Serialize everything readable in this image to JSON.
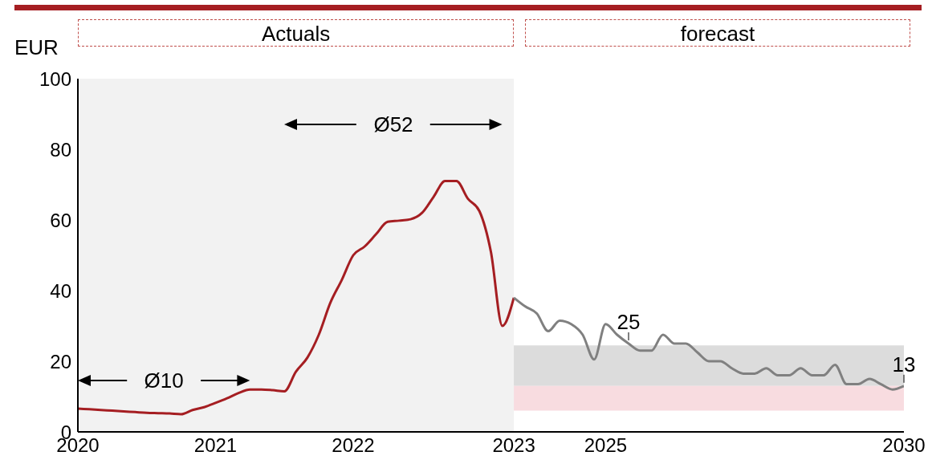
{
  "chart_data": {
    "type": "line",
    "ylabel": "EUR",
    "categories": [
      "2020",
      null,
      null,
      null,
      null,
      null,
      null,
      null,
      null,
      null,
      null,
      null,
      "2021",
      null,
      null,
      null,
      null,
      null,
      null,
      null,
      null,
      null,
      null,
      null,
      "2022",
      null,
      null,
      null,
      null,
      null,
      null,
      null,
      null,
      null,
      null,
      null,
      null,
      null,
      "2023",
      null,
      null,
      null,
      null,
      null,
      null,
      null,
      "2025",
      null,
      null,
      null,
      null,
      null,
      null,
      null,
      null,
      null,
      null,
      null,
      null,
      null,
      null,
      null,
      null,
      null,
      null,
      null,
      null,
      null,
      null,
      null,
      null,
      null,
      "2030"
    ],
    "series": [
      {
        "color": "#a51e22",
        "values": [
          6.6,
          6.4,
          6.2,
          6,
          5.8,
          5.6,
          5.4,
          5.3,
          5.2,
          5,
          6.2,
          7,
          8.2,
          9.5,
          11,
          12,
          12,
          11.8,
          11.5,
          17,
          21,
          27.5,
          36.5,
          43,
          50,
          52.5,
          56,
          59.5,
          59.8,
          60.2,
          62,
          66.5,
          71,
          71,
          66,
          62.5,
          51,
          30,
          38,
          null,
          null,
          null,
          null,
          null,
          null,
          null,
          null,
          null,
          null,
          null,
          null,
          null,
          null,
          null,
          null,
          null,
          null,
          null,
          null,
          null,
          null,
          null,
          null,
          null,
          null,
          null,
          null,
          null,
          null,
          null,
          null,
          null,
          null
        ]
      },
      {
        "color": "#808080",
        "values": [
          null,
          null,
          null,
          null,
          null,
          null,
          null,
          null,
          null,
          null,
          null,
          null,
          null,
          null,
          null,
          null,
          null,
          null,
          null,
          null,
          null,
          null,
          null,
          null,
          null,
          null,
          null,
          null,
          null,
          null,
          null,
          null,
          null,
          null,
          null,
          null,
          null,
          null,
          38,
          35.5,
          33.5,
          28.5,
          31.5,
          30.5,
          27.5,
          20.5,
          30.5,
          27.5,
          25,
          23,
          23,
          27.5,
          25,
          25,
          22.5,
          20,
          20,
          18,
          16.5,
          16.5,
          18,
          16,
          16,
          18,
          16,
          16,
          19,
          13.5,
          13.5,
          15,
          13.5,
          12,
          13
        ],
        "value_labels": [
          null,
          null,
          null,
          null,
          null,
          null,
          null,
          null,
          null,
          null,
          null,
          null,
          null,
          null,
          null,
          null,
          null,
          null,
          null,
          null,
          null,
          null,
          null,
          null,
          null,
          null,
          null,
          null,
          null,
          null,
          null,
          null,
          null,
          null,
          null,
          null,
          null,
          null,
          null,
          null,
          null,
          null,
          null,
          null,
          null,
          null,
          null,
          null,
          "25",
          null,
          null,
          null,
          null,
          null,
          null,
          null,
          null,
          null,
          null,
          null,
          null,
          null,
          null,
          null,
          null,
          null,
          null,
          null,
          null,
          null,
          null,
          null,
          "13"
        ]
      }
    ],
    "ylim": [
      0,
      100
    ],
    "yticks": [
      0,
      20,
      40,
      60,
      80,
      100
    ],
    "bands": [
      {
        "axis": "y",
        "from": 13,
        "to": 24.5,
        "color": "#dcdcdc"
      },
      {
        "axis": "y",
        "from": 6,
        "to": 13,
        "color": "#f8dce0"
      },
      {
        "axis": "x",
        "from": "2020",
        "to": "2023",
        "color": "#f2f2f2",
        "label": "Actuals"
      }
    ],
    "annotations": [
      "Ø10",
      "Ø52",
      "forecast"
    ]
  }
}
